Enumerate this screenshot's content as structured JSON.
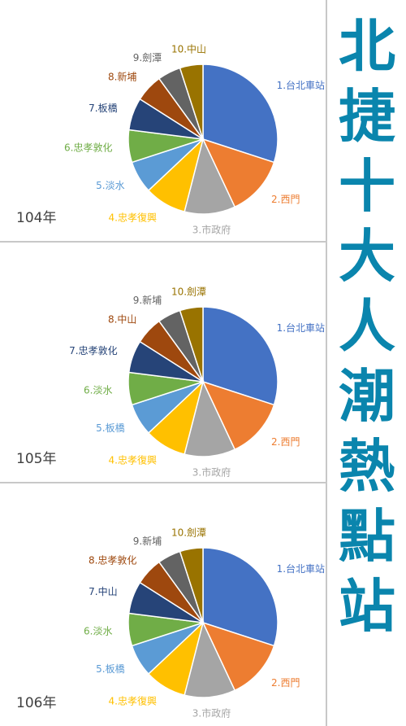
{
  "title": {
    "text": "北捷十大人潮熱點站",
    "color": "#0a85ad"
  },
  "colors": [
    "#4472c4",
    "#ed7d31",
    "#a5a5a5",
    "#ffc000",
    "#5b9bd5",
    "#70ad47",
    "#264478",
    "#9e480e",
    "#636363",
    "#997300"
  ],
  "chart_data": [
    {
      "type": "pie",
      "year_label": "104年",
      "labels": [
        "1.台北車站",
        "2.西門",
        "3.市政府",
        "4.忠孝復興",
        "5.淡水",
        "6.忠孝敦化",
        "7.板橋",
        "8.新埔",
        "9.劍潭",
        "10.中山"
      ],
      "values": [
        30,
        13,
        11,
        9,
        7,
        7,
        7,
        6,
        5,
        5
      ]
    },
    {
      "type": "pie",
      "year_label": "105年",
      "labels": [
        "1.台北車站",
        "2.西門",
        "3.市政府",
        "4.忠孝復興",
        "5.板橋",
        "6.淡水",
        "7.忠孝敦化",
        "8.中山",
        "9.新埔",
        "10.劍潭"
      ],
      "values": [
        30,
        13,
        11,
        9,
        7,
        7,
        7,
        6,
        5,
        5
      ]
    },
    {
      "type": "pie",
      "year_label": "106年",
      "labels": [
        "1.台北車站",
        "2.西門",
        "3.市政府",
        "4.忠孝復興",
        "5.板橋",
        "6.淡水",
        "7.中山",
        "8.忠孝敦化",
        "9.新埔",
        "10.劍潭"
      ],
      "values": [
        30,
        13,
        11,
        9,
        7,
        7,
        7,
        6,
        5,
        5
      ]
    }
  ]
}
